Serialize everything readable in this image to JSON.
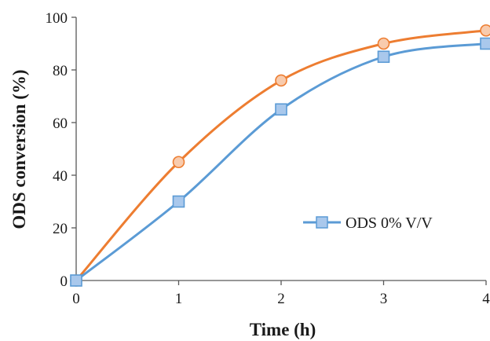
{
  "chart_data": {
    "type": "line",
    "xlabel": "Time (h)",
    "ylabel": "ODS conversion (%)",
    "xlim": [
      0,
      4
    ],
    "ylim": [
      0,
      100
    ],
    "x_ticks": [
      "0",
      "1",
      "2",
      "3",
      "4"
    ],
    "y_ticks": [
      "0",
      "20",
      "40",
      "60",
      "80",
      "100"
    ],
    "grid": false,
    "legend_position": "bottom-right",
    "x": [
      0,
      1,
      2,
      3,
      4
    ],
    "series": [
      {
        "name": "ODS 0% V/V",
        "marker": "square",
        "color": "#5b9bd5",
        "marker_fill": "#a9c8ec",
        "values": [
          0,
          30,
          65,
          85,
          90
        ]
      },
      {
        "marker": "circle",
        "color": "#ed7d31",
        "marker_fill": "#f8cbad",
        "values": [
          0,
          45,
          76,
          90,
          95
        ]
      }
    ]
  }
}
